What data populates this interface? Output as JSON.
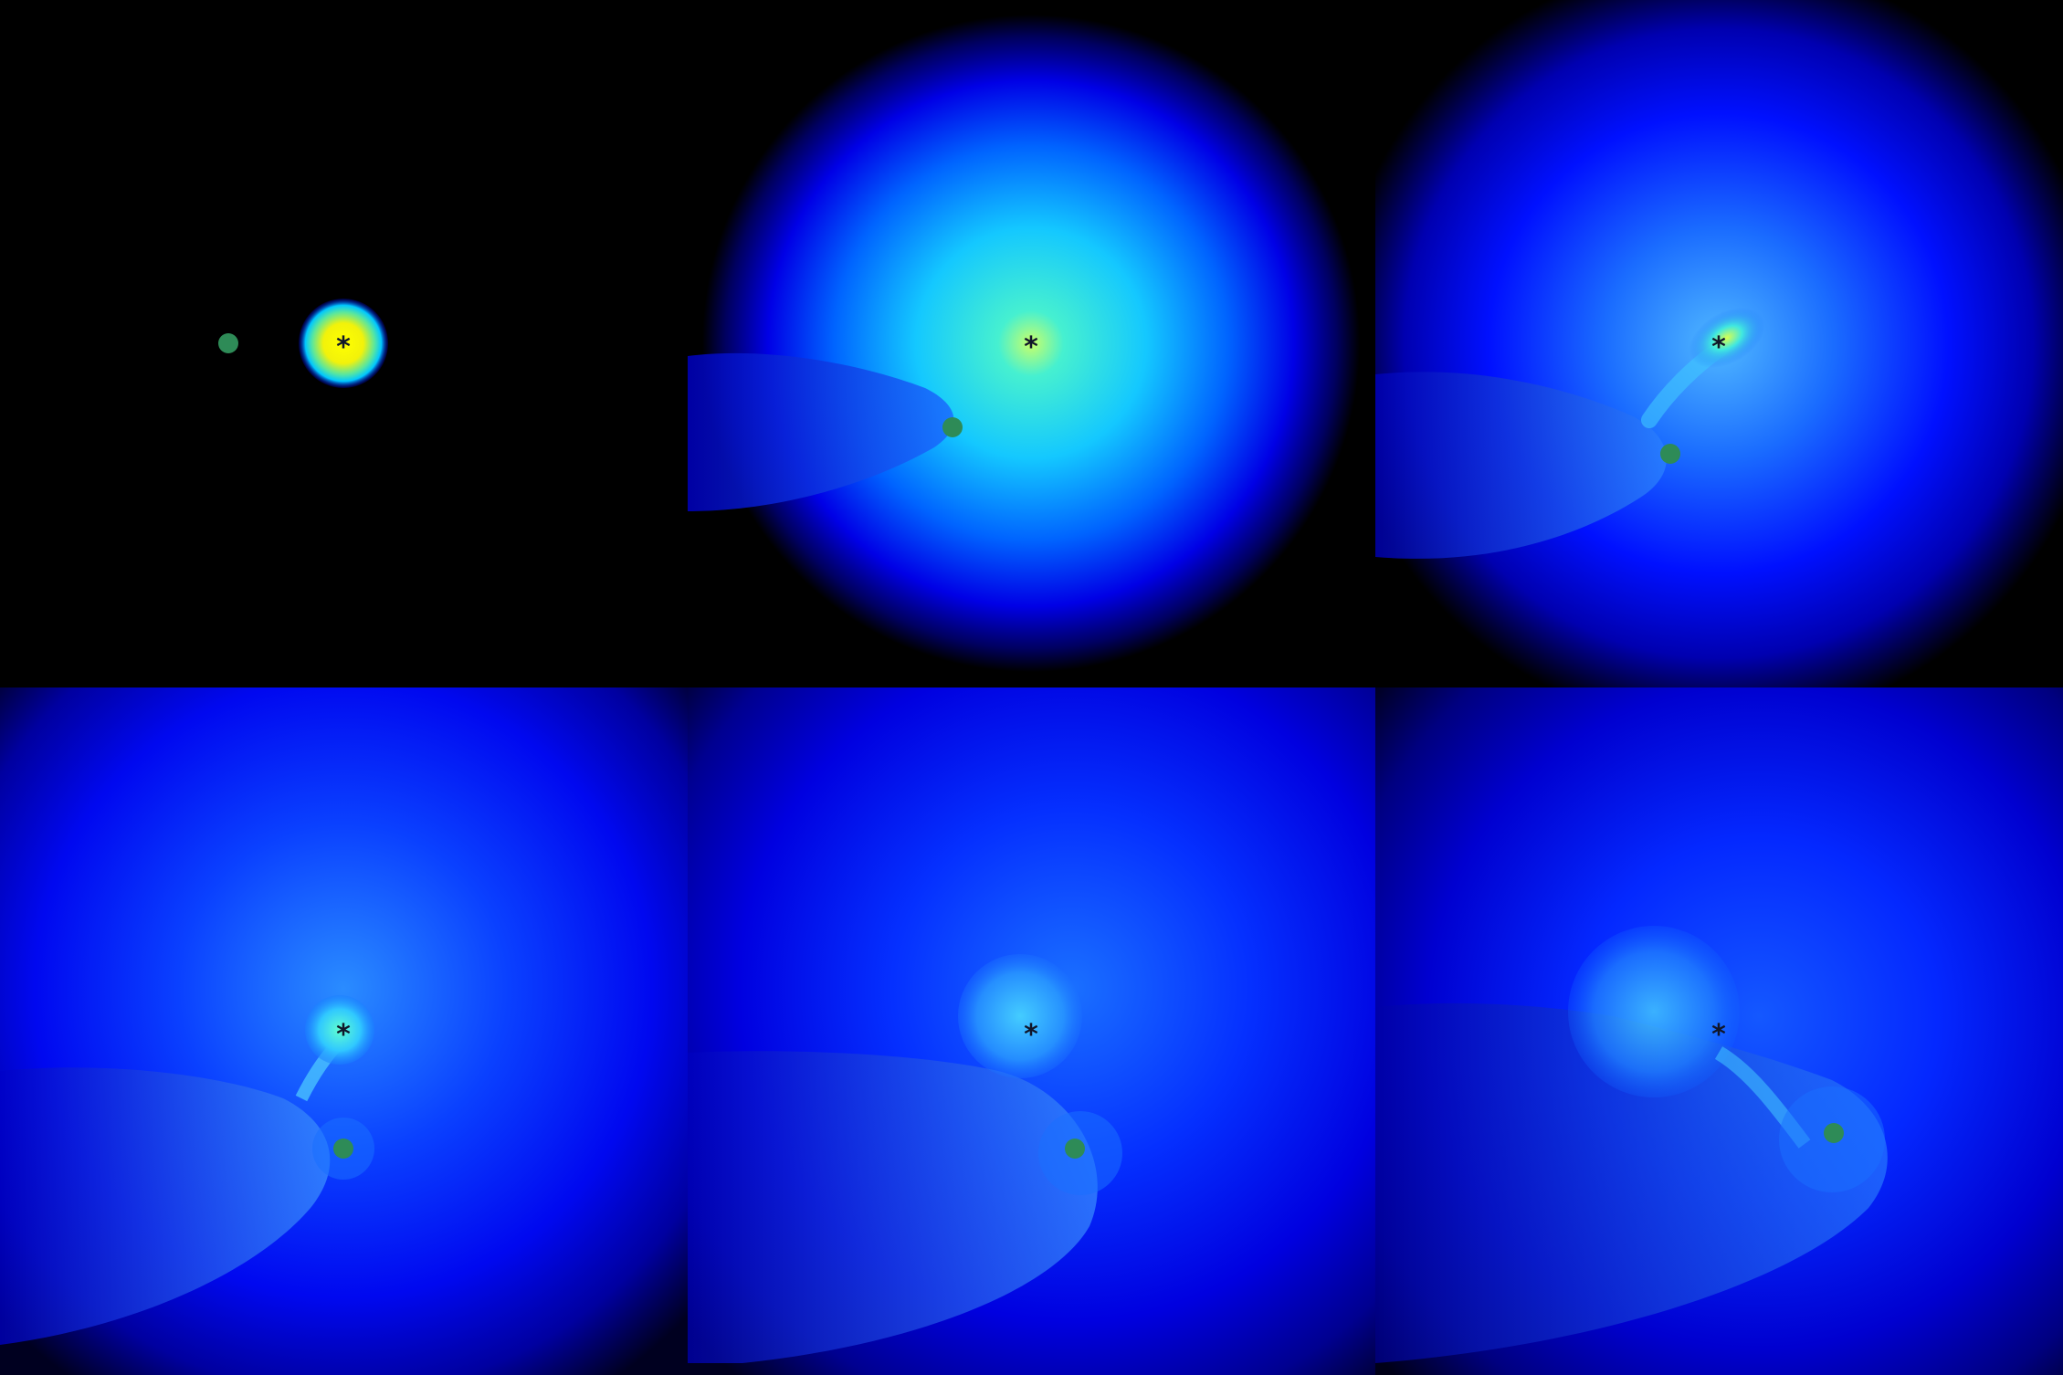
{
  "figure": {
    "description_panels": 6,
    "panels": [
      {
        "id": "panel-1",
        "star_symbol": "*"
      },
      {
        "id": "panel-2",
        "star_symbol": "*"
      },
      {
        "id": "panel-3",
        "star_symbol": "*"
      },
      {
        "id": "panel-4",
        "star_symbol": "*"
      },
      {
        "id": "panel-5",
        "star_symbol": "*"
      },
      {
        "id": "panel-6",
        "star_symbol": "*"
      }
    ],
    "colors": {
      "background": "#000000",
      "companion": "#2e8b57",
      "star_core": "#ffff00",
      "star_mid": "#00e5ff",
      "gas": "#0000ff"
    }
  }
}
